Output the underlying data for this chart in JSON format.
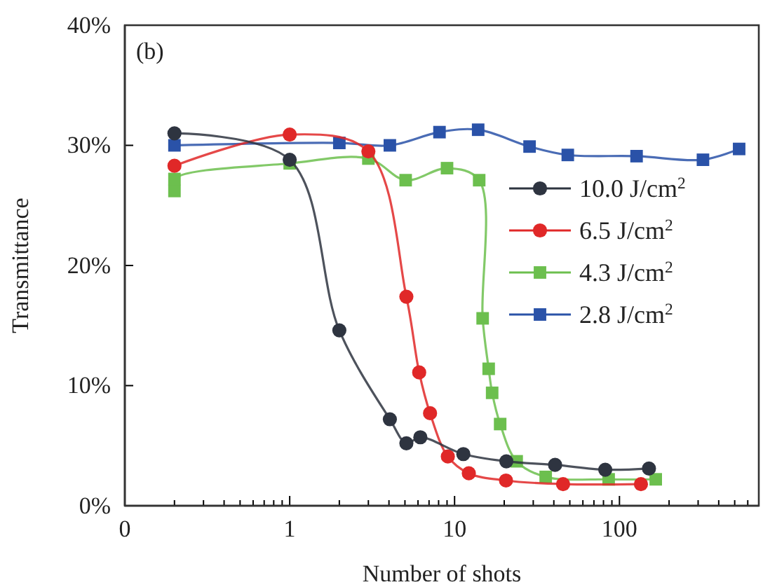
{
  "chart_data": {
    "type": "line",
    "xlabel": "Number of shots",
    "ylabel": "Transmittance",
    "annotations": [
      "(b)"
    ],
    "log": "x",
    "xlim": [
      0.1,
      700
    ],
    "xticks": [
      {
        "value": 0.1,
        "label": "0"
      },
      {
        "value": 0.2,
        "label": null
      },
      {
        "value": 0.3,
        "label": null
      },
      {
        "value": 0.4,
        "label": null
      },
      {
        "value": 0.5,
        "label": null
      },
      {
        "value": 0.6,
        "label": null
      },
      {
        "value": 0.7,
        "label": null
      },
      {
        "value": 0.8,
        "label": null
      },
      {
        "value": 0.9,
        "label": null
      },
      1,
      {
        "value": 2,
        "label": null
      },
      {
        "value": 3,
        "label": null
      },
      {
        "value": 4,
        "label": null
      },
      {
        "value": 5,
        "label": null
      },
      {
        "value": 6,
        "label": null
      },
      {
        "value": 7,
        "label": null
      },
      {
        "value": 8,
        "label": null
      },
      {
        "value": 9,
        "label": null
      },
      10,
      {
        "value": 20,
        "label": null
      },
      {
        "value": 30,
        "label": null
      },
      {
        "value": 40,
        "label": null
      },
      {
        "value": 50,
        "label": null
      },
      {
        "value": 60,
        "label": null
      },
      {
        "value": 70,
        "label": null
      },
      {
        "value": 80,
        "label": null
      },
      {
        "value": 90,
        "label": null
      },
      100,
      {
        "value": 200,
        "label": null
      },
      {
        "value": 300,
        "label": null
      },
      {
        "value": 400,
        "label": null
      },
      {
        "value": 500,
        "label": null
      },
      {
        "value": 600,
        "label": null
      },
      {
        "value": 700,
        "label": null
      }
    ],
    "ylim": [
      0,
      40
    ],
    "yticks": [
      {
        "value": 0,
        "label": "0%"
      },
      {
        "value": 10,
        "label": "10%"
      },
      {
        "value": 20,
        "label": "20%"
      },
      {
        "value": 30,
        "label": "30%"
      },
      {
        "value": 40,
        "label": "40%"
      }
    ],
    "grid": false,
    "legend": "right",
    "line_style": "solid",
    "series": [
      {
        "name": "10.0 J/cm$^{2}$",
        "color": "#2e3440",
        "marker": "circle",
        "x": [
          0.2,
          1,
          2,
          4.05,
          5.1,
          6.2,
          11.3,
          20.6,
          40.7,
          82,
          151
        ],
        "values": [
          31.0,
          28.8,
          14.6,
          7.2,
          5.2,
          5.7,
          4.3,
          3.7,
          3.4,
          3.0,
          3.1
        ]
      },
      {
        "name": "6.5 J/cm$^{2}$",
        "color": "#e02828",
        "marker": "circle",
        "x": [
          0.2,
          1,
          3,
          5.1,
          6.1,
          7.1,
          9.1,
          12.2,
          20.5,
          45.5,
          135
        ],
        "values": [
          28.3,
          30.9,
          29.5,
          17.4,
          11.1,
          7.7,
          4.1,
          2.7,
          2.1,
          1.8,
          1.8
        ]
      },
      {
        "name": "4.3 J/cm$^{2}$",
        "color": "#6cbf4e",
        "marker": "square",
        "x": [
          0.2,
          0.2,
          1,
          3,
          5.05,
          9,
          14.1,
          14.8,
          16.1,
          16.9,
          18.9,
          23.8,
          35.7,
          86,
          166
        ],
        "values": [
          26.2,
          27.2,
          28.5,
          28.9,
          27.1,
          28.1,
          27.1,
          15.6,
          11.4,
          9.4,
          6.8,
          3.7,
          2.4,
          2.2,
          2.2
        ]
      },
      {
        "name": "2.8 J/cm$^{2}$",
        "color": "#2a52a8",
        "marker": "square",
        "x": [
          0.2,
          2,
          4.05,
          8.1,
          13.9,
          28.5,
          48.6,
          127,
          321,
          532
        ],
        "values": [
          30.0,
          30.2,
          30.0,
          31.1,
          31.3,
          29.9,
          29.2,
          29.1,
          28.8,
          29.7
        ]
      }
    ]
  }
}
